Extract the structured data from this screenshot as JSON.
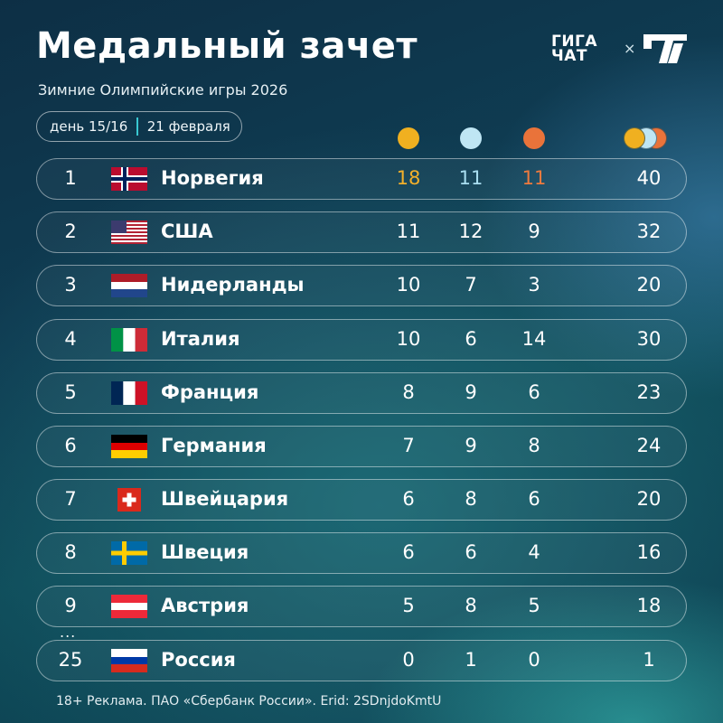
{
  "header": {
    "title": "Медальный зачет",
    "subtitle": "Зимние Олимпийские игры 2026"
  },
  "logos": {
    "giga_line1": "ГИГА",
    "giga_line2": "ЧАТ",
    "times": "×"
  },
  "day_pill": {
    "day": "день 15/16",
    "date": "21 февраля"
  },
  "colors": {
    "gold": "#f0b020",
    "silver": "#bfe6f4",
    "bronze": "#e9733a"
  },
  "rows": [
    {
      "rank": "1",
      "country": "Норвегия",
      "flag": "norway-flag-icon",
      "gold": "18",
      "silver": "11",
      "bronze": "11",
      "total": "40"
    },
    {
      "rank": "2",
      "country": "США",
      "flag": "usa-flag-icon",
      "gold": "11",
      "silver": "12",
      "bronze": "9",
      "total": "32"
    },
    {
      "rank": "3",
      "country": "Нидерланды",
      "flag": "netherlands-flag-icon",
      "gold": "10",
      "silver": "7",
      "bronze": "3",
      "total": "20"
    },
    {
      "rank": "4",
      "country": "Италия",
      "flag": "italy-flag-icon",
      "gold": "10",
      "silver": "6",
      "bronze": "14",
      "total": "30"
    },
    {
      "rank": "5",
      "country": "Франция",
      "flag": "france-flag-icon",
      "gold": "8",
      "silver": "9",
      "bronze": "6",
      "total": "23"
    },
    {
      "rank": "6",
      "country": "Германия",
      "flag": "germany-flag-icon",
      "gold": "7",
      "silver": "9",
      "bronze": "8",
      "total": "24"
    },
    {
      "rank": "7",
      "country": "Швейцария",
      "flag": "switzerland-flag-icon",
      "gold": "6",
      "silver": "8",
      "bronze": "6",
      "total": "20"
    },
    {
      "rank": "8",
      "country": "Швеция",
      "flag": "sweden-flag-icon",
      "gold": "6",
      "silver": "6",
      "bronze": "4",
      "total": "16"
    },
    {
      "rank": "9",
      "country": "Австрия",
      "flag": "austria-flag-icon",
      "gold": "5",
      "silver": "8",
      "bronze": "5",
      "total": "18"
    },
    {
      "rank": "25",
      "country": "Россия",
      "flag": "russia-flag-icon",
      "gold": "0",
      "silver": "1",
      "bronze": "0",
      "total": "1"
    }
  ],
  "ellipsis": "...",
  "footer": "18+ Реклама. ПАО «Сбербанк России». Erid: 2SDnjdoKmtU"
}
